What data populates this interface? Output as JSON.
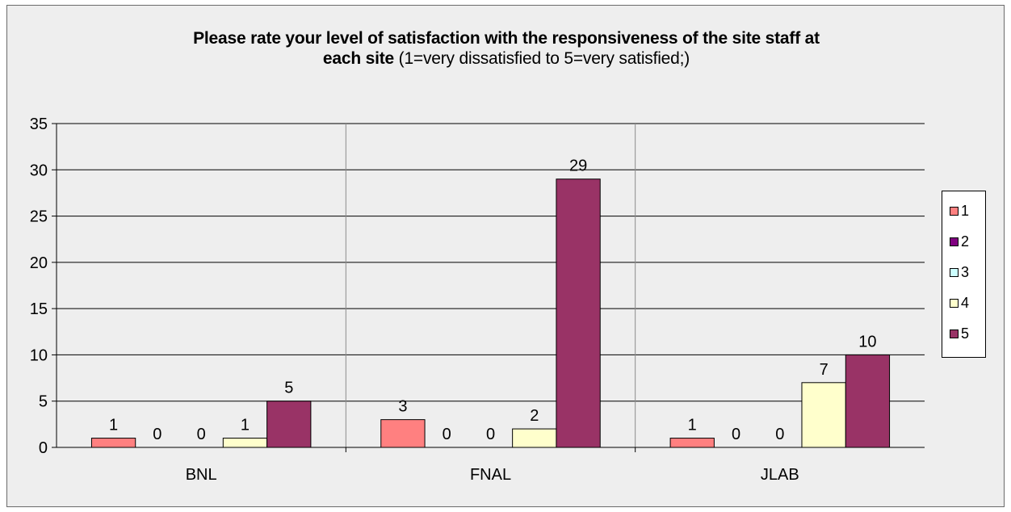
{
  "title": {
    "line1": "Please rate your level of satisfaction with the responsiveness of the site staff at",
    "line2_bold": "each site",
    "line2_normal": " (1=very dissatisfied to 5=very satisfied;)"
  },
  "chart_data": {
    "type": "bar",
    "categories": [
      "BNL",
      "FNAL",
      "JLAB"
    ],
    "series": [
      {
        "name": "1",
        "values": [
          1,
          3,
          1
        ],
        "color": "#ff8080"
      },
      {
        "name": "2",
        "values": [
          0,
          0,
          0
        ],
        "color": "#800080"
      },
      {
        "name": "3",
        "values": [
          0,
          0,
          0
        ],
        "color": "#ccffff"
      },
      {
        "name": "4",
        "values": [
          1,
          2,
          7
        ],
        "color": "#ffffcc"
      },
      {
        "name": "5",
        "values": [
          5,
          29,
          10
        ],
        "color": "#993366"
      }
    ],
    "ylim": [
      0,
      35
    ],
    "yticks": [
      0,
      5,
      10,
      15,
      20,
      25,
      30,
      35
    ],
    "grid": true,
    "legend_position": "right",
    "data_labels": true
  }
}
